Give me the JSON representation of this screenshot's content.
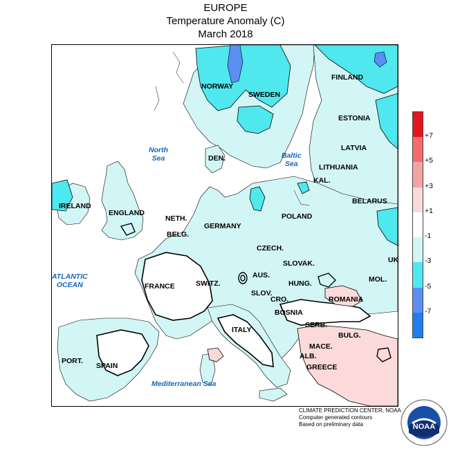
{
  "title": {
    "line1": "EUROPE",
    "line2": "Temperature Anomaly (C)",
    "line3": "March 2018"
  },
  "countries": {
    "norway": "NORWAY",
    "sweden": "SWEDEN",
    "finland": "FINLAND",
    "estonia": "ESTONIA",
    "latvia": "LATVIA",
    "lithuania": "LITHUANIA",
    "kal": "KAL.",
    "belarus": "BELARUS",
    "den": "DEN.",
    "ireland": "IRELAND",
    "england": "ENGLAND",
    "neth": "NETH.",
    "belg": "BELG.",
    "germany": "GERMANY",
    "poland": "POLAND",
    "czech": "CZECH.",
    "slovak": "SLOVAK.",
    "uk": "UK",
    "france": "FRANCE",
    "switz": "SWITZ.",
    "aus": "AUS.",
    "hung": "HUNG.",
    "mol": "MOL.",
    "slov": "SLOV.",
    "cro": "CRO.",
    "romania": "ROMANIA",
    "bosnia": "BOSNIA",
    "serb": "SERB.",
    "italy": "ITALY",
    "bulg": "BULG.",
    "mace": "MACE.",
    "alb": "ALB.",
    "greece": "GREECE",
    "port": "PORT.",
    "spain": "SPAIN"
  },
  "seas": {
    "north_line1": "North",
    "north_line2": "Sea",
    "baltic_line1": "Baltic",
    "baltic_line2": "Sea",
    "atlantic_line1": "ATLANTIC",
    "atlantic_line2": "OCEAN",
    "mediterranean": "Mediterranean Sea"
  },
  "legend": {
    "labels": [
      "+7",
      "+5",
      "+3",
      "+1",
      "-1",
      "-3",
      "-5",
      "-7"
    ],
    "bins": [
      {
        "range": "> +7",
        "color": "#e8141c"
      },
      {
        "range": "+5 to +7",
        "color": "#f56b6b"
      },
      {
        "range": "+3 to +5",
        "color": "#f4a3a3"
      },
      {
        "range": "+1 to +3",
        "color": "#fcdada"
      },
      {
        "range": "-1 to +1",
        "color": "#ffffff"
      },
      {
        "range": "-3 to -1",
        "color": "#d2f5f5"
      },
      {
        "range": "-5 to -3",
        "color": "#4fe8ef"
      },
      {
        "range": "-7 to -5",
        "color": "#5b8ff2"
      },
      {
        "range": "< -7",
        "color": "#1e7ef0"
      }
    ]
  },
  "colors": {
    "light_cyan": "#d2f5f5",
    "cyan": "#4fe8ef",
    "blue": "#5b8ff2",
    "light_pink": "#fcdada",
    "pink": "#f4a3a3",
    "sea_label": "#1565c0"
  },
  "credit": {
    "line1": "CLIMATE PREDICTION CENTER, NOAA",
    "line2": "Computer generated contours",
    "line3": "Based on preliminary data"
  },
  "logo": {
    "text": "NOAA"
  }
}
